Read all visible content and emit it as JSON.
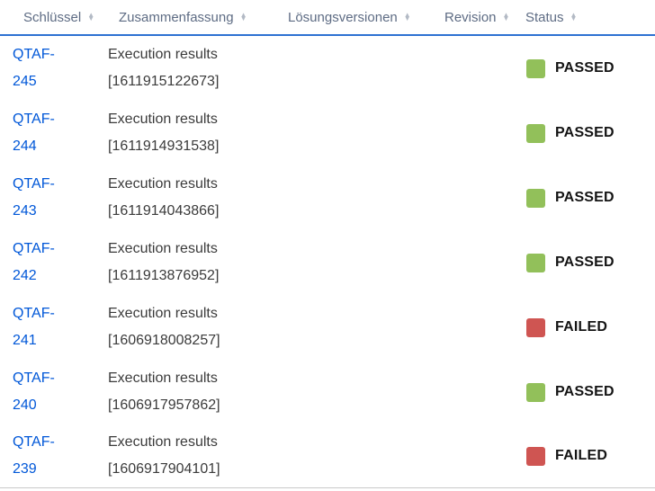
{
  "table": {
    "headers": [
      {
        "id": "key",
        "label": "Schlüssel"
      },
      {
        "id": "summary",
        "label": "Zusammenfassung"
      },
      {
        "id": "fixversions",
        "label": "Lösungsversionen"
      },
      {
        "id": "revision",
        "label": "Revision"
      },
      {
        "id": "status",
        "label": "Status"
      }
    ],
    "sort_icon_up": "▲",
    "sort_icon_down": "▼",
    "rows": [
      {
        "key": "QTAF-245",
        "summary": "Execution results [1611915122673]",
        "fixversions": "",
        "revision": "",
        "status": "PASSED"
      },
      {
        "key": "QTAF-244",
        "summary": "Execution results [1611914931538]",
        "fixversions": "",
        "revision": "",
        "status": "PASSED"
      },
      {
        "key": "QTAF-243",
        "summary": "Execution results [1611914043866]",
        "fixversions": "",
        "revision": "",
        "status": "PASSED"
      },
      {
        "key": "QTAF-242",
        "summary": "Execution results [1611913876952]",
        "fixversions": "",
        "revision": "",
        "status": "PASSED"
      },
      {
        "key": "QTAF-241",
        "summary": "Execution results [1606918008257]",
        "fixversions": "",
        "revision": "",
        "status": "FAILED"
      },
      {
        "key": "QTAF-240",
        "summary": "Execution results [1606917957862]",
        "fixversions": "",
        "revision": "",
        "status": "PASSED"
      },
      {
        "key": "QTAF-239",
        "summary": "Execution results [1606917904101]",
        "fixversions": "",
        "revision": "",
        "status": "FAILED"
      }
    ],
    "status_colors": {
      "PASSED": "#92c05a",
      "FAILED": "#cf5552"
    },
    "colors": {
      "header_underline": "#2e71d2",
      "link_blue": "#0057d8",
      "header_text": "#5e6c84",
      "body_text": "#3b3b3b",
      "status_text": "#141414"
    }
  }
}
